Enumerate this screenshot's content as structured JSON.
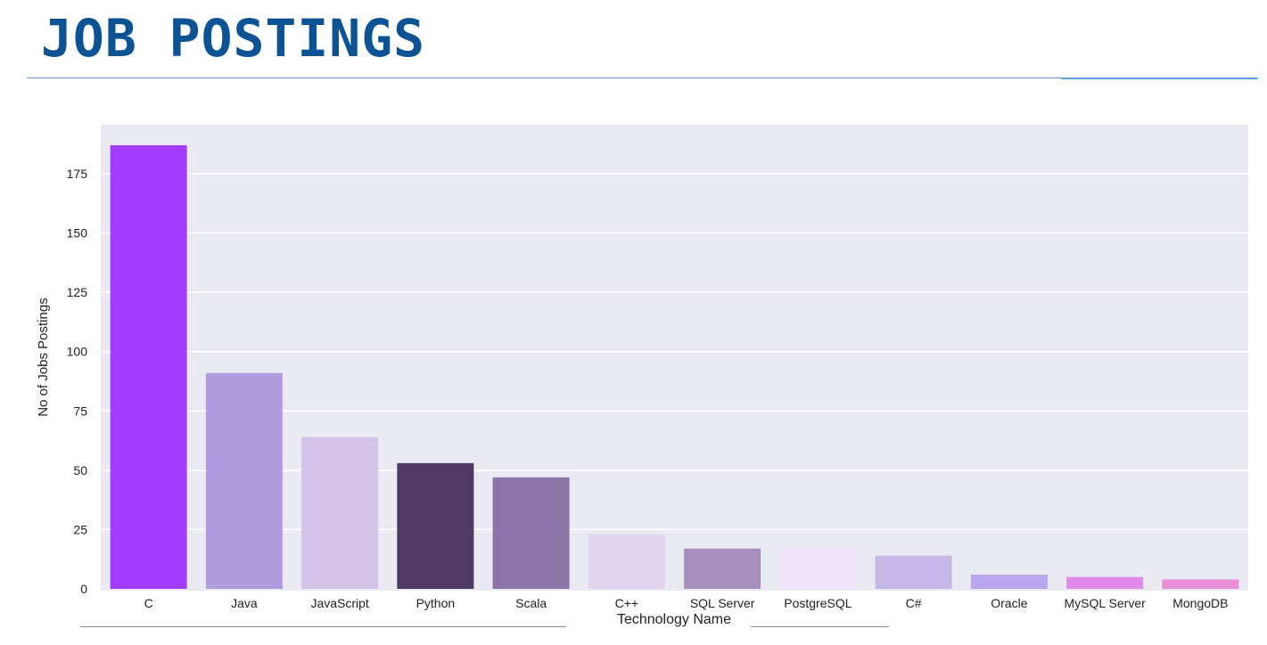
{
  "page": {
    "title": "JOB POSTINGS"
  },
  "chart_data": {
    "type": "bar",
    "title": "",
    "xlabel": "Technology Name",
    "ylabel": "No of Jobs Postings",
    "categories": [
      "C",
      "Java",
      "JavaScript",
      "Python",
      "Scala",
      "C++",
      "SQL Server",
      "PostgreSQL",
      "C#",
      "Oracle",
      "MySQL Server",
      "MongoDB"
    ],
    "values": [
      187,
      91,
      64,
      53,
      47,
      23,
      17,
      17,
      14,
      6,
      5,
      4
    ],
    "colors": [
      "#a23dff",
      "#b09ddf",
      "#d3c3e6",
      "#4e3a63",
      "#8c76a7",
      "#e2d5f0",
      "#a78fbe",
      "#f0e4fc",
      "#c5b8e6",
      "#baa8ef",
      "#e08ae9",
      "#ea8ed8"
    ],
    "yticks": [
      0,
      25,
      50,
      75,
      100,
      125,
      150,
      175
    ],
    "ylim": [
      0,
      197
    ],
    "grid": true,
    "legend": "none",
    "plot_background": "#eaeaf2"
  }
}
